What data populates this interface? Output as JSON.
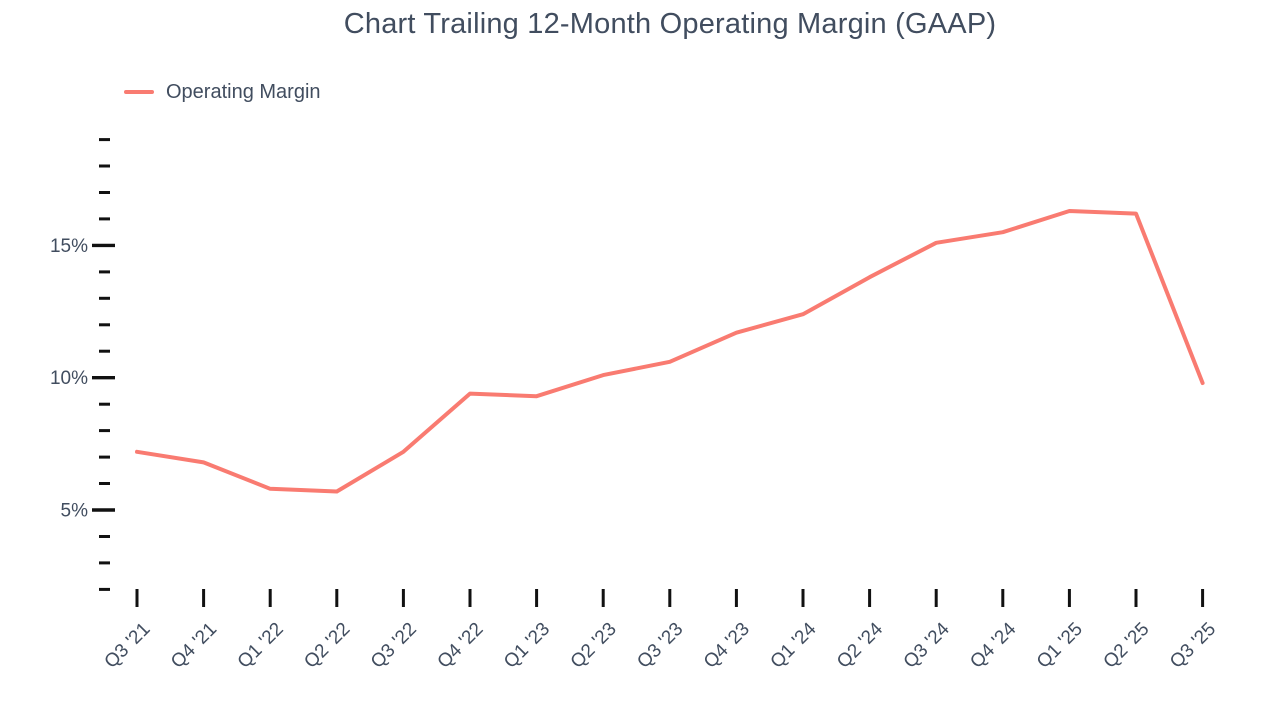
{
  "colors": {
    "line": "#f97b71",
    "text": "#414d5f",
    "tick": "#111111",
    "background": "#ffffff"
  },
  "chart_data": {
    "type": "line",
    "title": "Chart Trailing 12-Month Operating Margin (GAAP)",
    "xlabel": "",
    "ylabel": "",
    "categories": [
      "Q3 '21",
      "Q4 '21",
      "Q1 '22",
      "Q2 '22",
      "Q3 '22",
      "Q4 '22",
      "Q1 '23",
      "Q2 '23",
      "Q3 '23",
      "Q4 '23",
      "Q1 '24",
      "Q2 '24",
      "Q3 '24",
      "Q4 '24",
      "Q1 '25",
      "Q2 '25",
      "Q3 '25"
    ],
    "series": [
      {
        "name": "Operating Margin",
        "color": "#f97b71",
        "values": [
          7.2,
          6.8,
          5.8,
          5.7,
          7.2,
          9.4,
          9.3,
          10.1,
          10.6,
          11.7,
          12.4,
          13.8,
          15.1,
          15.5,
          16.3,
          16.2,
          9.8
        ]
      }
    ],
    "y_axis": {
      "unit": "%",
      "tick_min": 2,
      "tick_max": 19,
      "major_ticks": [
        5,
        10,
        15
      ],
      "tick_labels": [
        "5%",
        "10%",
        "15%"
      ]
    },
    "ylim": [
      2,
      19
    ],
    "grid": false,
    "legend_position": "top-left",
    "x_labels_rotation_deg": -45
  }
}
